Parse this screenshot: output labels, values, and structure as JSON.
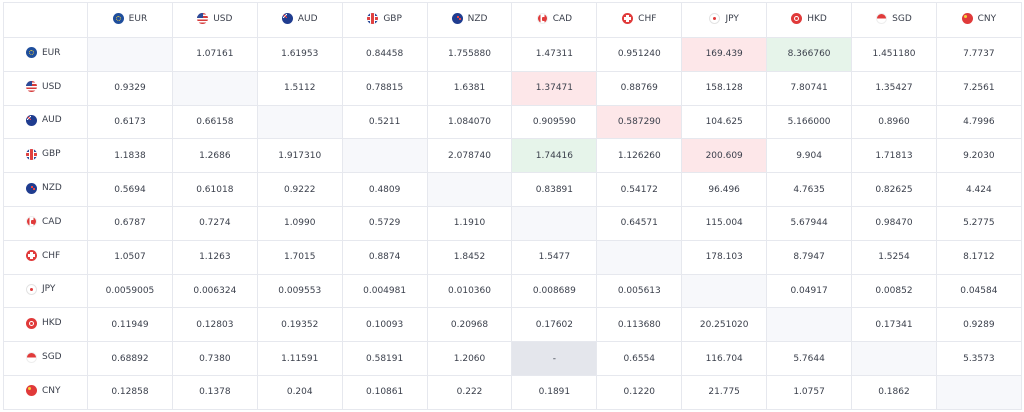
{
  "currencies": [
    {
      "code": "EUR",
      "flag_icon": "eu-flag-icon"
    },
    {
      "code": "USD",
      "flag_icon": "us-flag-icon"
    },
    {
      "code": "AUD",
      "flag_icon": "australia-flag-icon"
    },
    {
      "code": "GBP",
      "flag_icon": "uk-flag-icon"
    },
    {
      "code": "NZD",
      "flag_icon": "new-zealand-flag-icon"
    },
    {
      "code": "CAD",
      "flag_icon": "canada-flag-icon"
    },
    {
      "code": "CHF",
      "flag_icon": "switzerland-flag-icon"
    },
    {
      "code": "JPY",
      "flag_icon": "japan-flag-icon"
    },
    {
      "code": "HKD",
      "flag_icon": "hong-kong-flag-icon"
    },
    {
      "code": "SGD",
      "flag_icon": "singapore-flag-icon"
    },
    {
      "code": "CNY",
      "flag_icon": "china-flag-icon"
    }
  ],
  "rates": [
    [
      "",
      "1.07161",
      "1.61953",
      "0.84458",
      "1.755880",
      "1.47311",
      "0.951240",
      "169.439",
      "8.366760",
      "1.451180",
      "7.7737"
    ],
    [
      "0.9329",
      "",
      "1.5112",
      "0.78815",
      "1.6381",
      "1.37471",
      "0.88769",
      "158.128",
      "7.80741",
      "1.35427",
      "7.2561"
    ],
    [
      "0.6173",
      "0.66158",
      "",
      "0.5211",
      "1.084070",
      "0.909590",
      "0.587290",
      "104.625",
      "5.166000",
      "0.8960",
      "4.7996"
    ],
    [
      "1.1838",
      "1.2686",
      "1.917310",
      "",
      "2.078740",
      "1.74416",
      "1.126260",
      "200.609",
      "9.904",
      "1.71813",
      "9.2030"
    ],
    [
      "0.5694",
      "0.61018",
      "0.9222",
      "0.4809",
      "",
      "0.83891",
      "0.54172",
      "96.496",
      "4.7635",
      "0.82625",
      "4.424"
    ],
    [
      "0.6787",
      "0.7274",
      "1.0990",
      "0.5729",
      "1.1910",
      "",
      "0.64571",
      "115.004",
      "5.67944",
      "0.98470",
      "5.2775"
    ],
    [
      "1.0507",
      "1.1263",
      "1.7015",
      "0.8874",
      "1.8452",
      "1.5477",
      "",
      "178.103",
      "8.7947",
      "1.5254",
      "8.1712"
    ],
    [
      "0.0059005",
      "0.006324",
      "0.009553",
      "0.004981",
      "0.010360",
      "0.008689",
      "0.005613",
      "",
      "0.04917",
      "0.00852",
      "0.04584"
    ],
    [
      "0.11949",
      "0.12803",
      "0.19352",
      "0.10093",
      "0.20968",
      "0.17602",
      "0.113680",
      "20.251020",
      "",
      "0.17341",
      "0.9289"
    ],
    [
      "0.68892",
      "0.7380",
      "1.11591",
      "0.58191",
      "1.2060",
      "-",
      "0.6554",
      "116.704",
      "5.7644",
      "",
      "5.3573"
    ],
    [
      "0.12858",
      "0.1378",
      "0.204",
      "0.10861",
      "0.222",
      "0.1891",
      "0.1220",
      "21.775",
      "1.0757",
      "0.1862",
      ""
    ]
  ],
  "highlights": {
    "red": [
      [
        0,
        7
      ],
      [
        1,
        5
      ],
      [
        2,
        6
      ],
      [
        3,
        7
      ]
    ],
    "green": [
      [
        0,
        8
      ],
      [
        3,
        5
      ]
    ],
    "grey": [
      [
        9,
        5
      ]
    ]
  },
  "colors": {
    "red_highlight": "#fde7e9",
    "green_highlight": "#e6f4ea",
    "grey_highlight": "#e4e6ec",
    "diagonal": "#f7f8fb",
    "border": "#e6e8ee",
    "text": "#3a3f4b"
  }
}
